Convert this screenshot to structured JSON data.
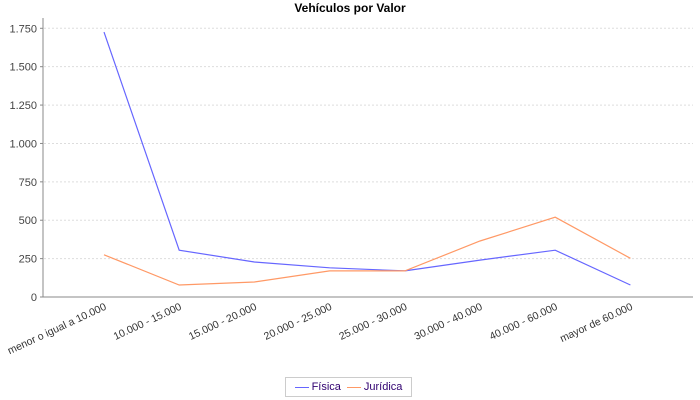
{
  "chart_data": {
    "type": "line",
    "title": "Vehículos por Valor",
    "xlabel": "",
    "ylabel": "",
    "ylim": [
      0,
      1750
    ],
    "yticks": [
      0,
      250,
      500,
      750,
      1000,
      1250,
      1500,
      1750
    ],
    "ytick_labels": [
      "0",
      "250",
      "500",
      "750",
      "1.000",
      "1.250",
      "1.500",
      "1.750"
    ],
    "grid": true,
    "legend_position": "bottom",
    "categories": [
      "menor o igual a 10.000",
      "10.000 - 15.000",
      "15.000 - 20.000",
      "20.000 - 25.000",
      "25.000 - 30.000",
      "30.000 - 40.000",
      "40.000 - 60.000",
      "mayor de 60.000"
    ],
    "series": [
      {
        "name": "Física",
        "color": "#6666ff",
        "values": [
          1725,
          305,
          228,
          190,
          170,
          240,
          305,
          78
        ]
      },
      {
        "name": "Jurídica",
        "color": "#ff9966",
        "values": [
          275,
          78,
          98,
          170,
          170,
          365,
          520,
          252
        ]
      }
    ]
  }
}
